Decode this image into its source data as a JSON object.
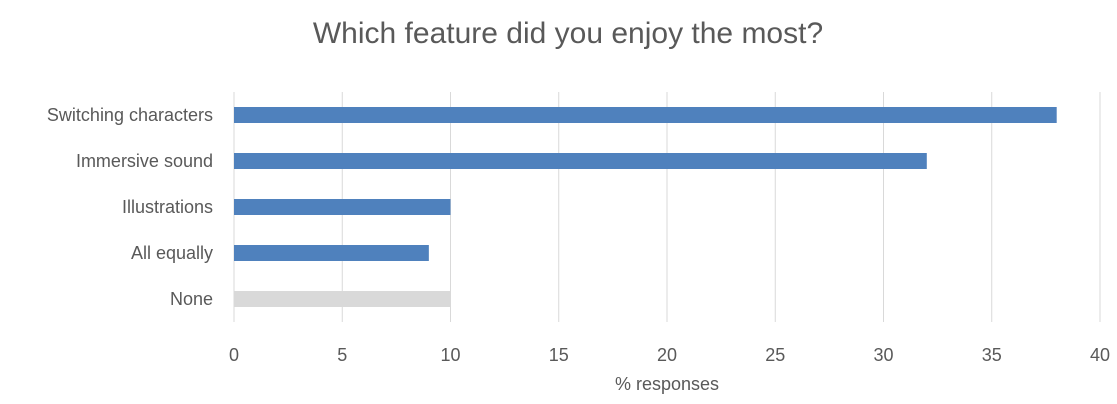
{
  "chart_data": {
    "type": "bar",
    "orientation": "horizontal",
    "title": "Which feature did you enjoy the most?",
    "xlabel": "% responses",
    "ylabel": "",
    "categories": [
      "Switching characters",
      "Immersive sound",
      "Illustrations",
      "All equally",
      "None"
    ],
    "values": [
      38,
      32,
      10,
      9,
      10
    ],
    "bar_colors": [
      "#4f81bd",
      "#4f81bd",
      "#4f81bd",
      "#4f81bd",
      "#d9d9d9"
    ],
    "xlim": [
      0,
      40
    ],
    "xticks": [
      "0",
      "5",
      "10",
      "15",
      "20",
      "25",
      "30",
      "35",
      "40"
    ],
    "grid": "vertical gridlines",
    "legend": "none"
  }
}
